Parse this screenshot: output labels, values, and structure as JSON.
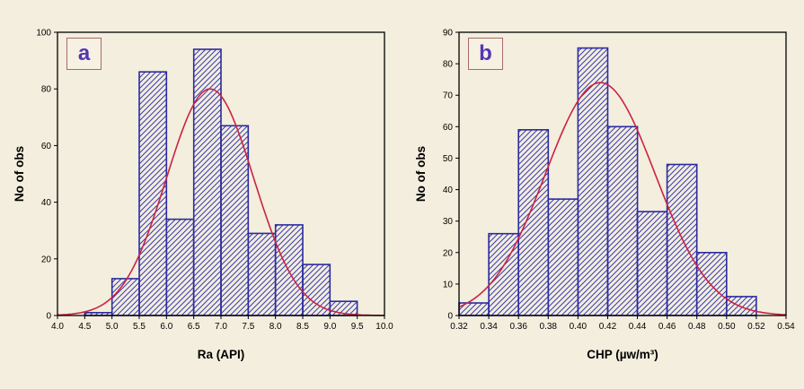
{
  "page": {
    "background": "#f3eedd"
  },
  "colors": {
    "bar_outline": "#2b2ba0",
    "bar_hatch": "#3a3ab2",
    "curve": "#cc2244",
    "frame": "#000000",
    "text": "#000000",
    "panel_letter": "#5535b2",
    "panel_letter_border": "#a86a6a"
  },
  "chart_data": [
    {
      "type": "bar",
      "subtype": "histogram-with-normal-fit",
      "panel_label": "a",
      "title": "",
      "xlabel": "Ra (API)",
      "ylabel": "No of obs",
      "xlim": [
        4.0,
        10.0
      ],
      "ylim": [
        0,
        100
      ],
      "grid": false,
      "legend_position": "none",
      "x_tick_values": [
        4.0,
        4.5,
        5.0,
        5.5,
        6.0,
        6.5,
        7.0,
        7.5,
        8.0,
        8.5,
        9.0,
        9.5,
        10.0
      ],
      "x_tick_labels": [
        "4.0",
        "4.5",
        "5.0",
        "5.5",
        "6.0",
        "6.5",
        "7.0",
        "7.5",
        "8.0",
        "8.5",
        "9.0",
        "9.5",
        "10.0"
      ],
      "y_tick_values": [
        0,
        20,
        40,
        60,
        80,
        100
      ],
      "y_tick_labels": [
        "0",
        "20",
        "40",
        "60",
        "80",
        "100"
      ],
      "bin_edges": [
        4.5,
        5.0,
        5.5,
        6.0,
        6.5,
        7.0,
        7.5,
        8.0,
        8.5,
        9.0,
        9.5
      ],
      "counts": [
        1,
        13,
        86,
        34,
        94,
        67,
        29,
        32,
        18,
        5
      ],
      "normal_curve": {
        "mean": 6.8,
        "sd": 0.8,
        "peak": 80
      }
    },
    {
      "type": "bar",
      "subtype": "histogram-with-normal-fit",
      "panel_label": "b",
      "title": "",
      "xlabel": "CHP (µw/m³)",
      "ylabel": "No of obs",
      "xlim": [
        0.32,
        0.54
      ],
      "ylim": [
        0,
        90
      ],
      "grid": false,
      "legend_position": "none",
      "x_tick_values": [
        0.32,
        0.34,
        0.36,
        0.38,
        0.4,
        0.42,
        0.44,
        0.46,
        0.48,
        0.5,
        0.52,
        0.54
      ],
      "x_tick_labels": [
        "0.32",
        "0.34",
        "0.36",
        "0.38",
        "0.40",
        "0.42",
        "0.44",
        "0.46",
        "0.48",
        "0.50",
        "0.52",
        "0.54"
      ],
      "y_tick_values": [
        0,
        10,
        20,
        30,
        40,
        50,
        60,
        70,
        80,
        90
      ],
      "y_tick_labels": [
        "0",
        "10",
        "20",
        "30",
        "40",
        "50",
        "60",
        "70",
        "80",
        "90"
      ],
      "bin_edges": [
        0.32,
        0.34,
        0.36,
        0.38,
        0.4,
        0.42,
        0.44,
        0.46,
        0.48,
        0.5,
        0.52
      ],
      "counts": [
        4,
        26,
        59,
        37,
        85,
        60,
        33,
        48,
        20,
        6
      ],
      "normal_curve": {
        "mean": 0.415,
        "sd": 0.037,
        "peak": 74
      }
    }
  ]
}
